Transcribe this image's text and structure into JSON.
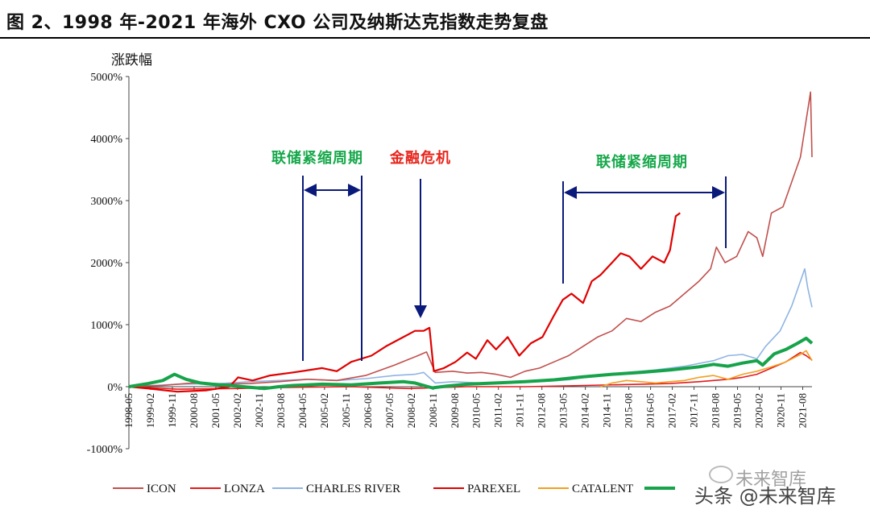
{
  "title": "图 2、1998 年-2021 年海外 CXO 公司及纳斯达克指数走势复盘",
  "watermark": {
    "text": "头条 @未来智库",
    "faded_text": "未来智库"
  },
  "annotations": {
    "tightening_1": "联储紧缩周期",
    "crisis": "金融危机",
    "tightening_2": "联储紧缩周期"
  },
  "colors": {
    "ICON": "#c0504d",
    "LONZA": "#e41a1c",
    "CHARLES RIVER": "#8fb4e3",
    "PAREXEL": "#e00000",
    "CATALENT": "#f0a020",
    "NASDAQ": "#16a34a",
    "arrow": "#0a1a7a",
    "annotation_green": "#17a84b",
    "annotation_red": "#e8251c"
  },
  "chart_data": {
    "type": "line",
    "title": "1998 年-2021 年海外 CXO 公司及纳斯达克指数走势复盘",
    "ylabel": "涨跌幅",
    "xlabel": "",
    "ylim": [
      -1000,
      5000
    ],
    "xlim": [
      1998.33,
      2021.9
    ],
    "y_ticks": [
      "5000%",
      "4000%",
      "3000%",
      "2000%",
      "1000%",
      "0%",
      "-1000%"
    ],
    "y_tick_values": [
      5000,
      4000,
      3000,
      2000,
      1000,
      0,
      -1000
    ],
    "x_ticks": [
      "1998-05",
      "1999-02",
      "1999-11",
      "2000-08",
      "2001-05",
      "2002-02",
      "2002-11",
      "2003-08",
      "2004-05",
      "2005-02",
      "2005-11",
      "2006-08",
      "2007-05",
      "2008-02",
      "2008-11",
      "2009-08",
      "2010-05",
      "2011-02",
      "2011-11",
      "2012-08",
      "2013-05",
      "2014-02",
      "2014-11",
      "2015-08",
      "2016-05",
      "2017-02",
      "2017-11",
      "2018-08",
      "2019-05",
      "2020-02",
      "2020-11",
      "2021-08"
    ],
    "x_tick_values": [
      1998.33,
      1999.08,
      1999.83,
      2000.58,
      2001.33,
      2002.08,
      2002.83,
      2003.58,
      2004.33,
      2005.08,
      2005.83,
      2006.58,
      2007.33,
      2008.08,
      2008.83,
      2009.58,
      2010.33,
      2011.08,
      2011.83,
      2012.58,
      2013.33,
      2014.08,
      2014.83,
      2015.58,
      2016.33,
      2017.08,
      2017.83,
      2018.58,
      2019.33,
      2020.08,
      2020.83,
      2021.58
    ],
    "legend": [
      "ICON",
      "LONZA",
      "CHARLES RIVER",
      "PAREXEL",
      "CATALENT",
      ""
    ],
    "legend_placement": "bottom",
    "series": [
      {
        "name": "ICON",
        "x": [
          1998.33,
          1999.5,
          2000.5,
          2001.5,
          2002.5,
          2003.5,
          2004.5,
          2005.5,
          2006.5,
          2007.5,
          2008.3,
          2008.6,
          2008.9,
          2009.5,
          2010.0,
          2010.5,
          2011.0,
          2011.5,
          2012.0,
          2012.5,
          2013.0,
          2013.5,
          2014.0,
          2014.5,
          2015.0,
          2015.5,
          2016.0,
          2016.5,
          2017.0,
          2017.5,
          2018.0,
          2018.4,
          2018.6,
          2018.9,
          2019.3,
          2019.7,
          2020.0,
          2020.2,
          2020.5,
          2020.9,
          2021.2,
          2021.5,
          2021.7,
          2021.85,
          2021.9
        ],
        "y": [
          0,
          20,
          60,
          40,
          50,
          80,
          120,
          100,
          180,
          350,
          500,
          560,
          230,
          250,
          220,
          230,
          200,
          150,
          250,
          300,
          400,
          500,
          650,
          800,
          900,
          1100,
          1050,
          1200,
          1300,
          1500,
          1700,
          1900,
          2250,
          2000,
          2100,
          2500,
          2400,
          2100,
          2800,
          2900,
          3300,
          3700,
          4300,
          4750,
          3700
        ]
      },
      {
        "name": "LONZA",
        "x": [
          1998.33,
          2000.0,
          2002.0,
          2004.0,
          2006.0,
          2008.0,
          2010.0,
          2012.0,
          2014.0,
          2016.0,
          2017.0,
          2018.0,
          2019.0,
          2019.5,
          2020.0,
          2020.5,
          2021.0,
          2021.5,
          2021.7,
          2021.9
        ],
        "y": [
          0,
          -40,
          -30,
          -10,
          0,
          -30,
          0,
          0,
          20,
          40,
          50,
          80,
          120,
          150,
          200,
          300,
          400,
          550,
          500,
          430
        ]
      },
      {
        "name": "CHARLES RIVER",
        "x": [
          1998.33,
          2000.0,
          2001.5,
          2002.5,
          2003.5,
          2004.5,
          2005.5,
          2006.5,
          2007.5,
          2008.2,
          2008.5,
          2008.9,
          2009.5,
          2010.5,
          2011.5,
          2012.5,
          2013.5,
          2014.5,
          2015.5,
          2016.5,
          2017.5,
          2018.5,
          2019.0,
          2019.5,
          2020.0,
          2020.3,
          2020.8,
          2021.2,
          2021.5,
          2021.65,
          2021.75,
          2021.9
        ],
        "y": [
          0,
          40,
          50,
          80,
          100,
          120,
          100,
          130,
          180,
          200,
          230,
          60,
          80,
          60,
          70,
          80,
          110,
          180,
          230,
          270,
          330,
          420,
          500,
          520,
          450,
          650,
          900,
          1300,
          1700,
          1900,
          1600,
          1280
        ]
      },
      {
        "name": "PAREXEL",
        "x": [
          1998.33,
          1999.0,
          2000.0,
          2001.0,
          2001.8,
          2002.1,
          2002.6,
          2003.2,
          2004.0,
          2005.0,
          2005.5,
          2006.0,
          2006.7,
          2007.2,
          2007.8,
          2008.2,
          2008.5,
          2008.7,
          2008.85,
          2009.2,
          2009.6,
          2010.0,
          2010.3,
          2010.7,
          2011.0,
          2011.4,
          2011.8,
          2012.2,
          2012.6,
          2013.0,
          2013.3,
          2013.6,
          2014.0,
          2014.3,
          2014.6,
          2015.0,
          2015.3,
          2015.6,
          2016.0,
          2016.4,
          2016.8,
          2017.0,
          2017.2,
          2017.35
        ],
        "y": [
          0,
          -30,
          -80,
          -60,
          0,
          150,
          100,
          180,
          230,
          300,
          250,
          400,
          500,
          650,
          800,
          900,
          900,
          950,
          250,
          300,
          400,
          550,
          450,
          750,
          600,
          800,
          500,
          700,
          800,
          1150,
          1400,
          1500,
          1350,
          1700,
          1800,
          2000,
          2150,
          2100,
          1900,
          2100,
          2000,
          2200,
          2750,
          2800
        ]
      },
      {
        "name": "CATALENT",
        "x": [
          2014.6,
          2015.0,
          2015.5,
          2016.0,
          2016.5,
          2017.0,
          2017.5,
          2018.0,
          2018.5,
          2019.0,
          2019.5,
          2020.0,
          2020.5,
          2021.0,
          2021.5,
          2021.7,
          2021.9
        ],
        "y": [
          0,
          60,
          100,
          80,
          60,
          80,
          100,
          150,
          180,
          120,
          200,
          250,
          320,
          400,
          520,
          580,
          420
        ]
      },
      {
        "name": "",
        "x": [
          1998.33,
          1999.0,
          1999.5,
          1999.9,
          2000.3,
          2000.8,
          2001.2,
          2001.8,
          2002.5,
          2003.0,
          2003.5,
          2004.0,
          2005.0,
          2006.0,
          2007.0,
          2007.8,
          2008.2,
          2008.8,
          2009.3,
          2010.0,
          2011.0,
          2012.0,
          2013.0,
          2014.0,
          2015.0,
          2016.0,
          2017.0,
          2018.0,
          2018.5,
          2019.0,
          2019.5,
          2020.0,
          2020.2,
          2020.6,
          2021.0,
          2021.4,
          2021.7,
          2021.9
        ],
        "y": [
          0,
          50,
          100,
          200,
          120,
          60,
          40,
          20,
          -10,
          -30,
          0,
          20,
          40,
          30,
          60,
          80,
          60,
          -20,
          10,
          40,
          60,
          80,
          110,
          160,
          200,
          230,
          270,
          320,
          360,
          330,
          380,
          420,
          350,
          530,
          600,
          700,
          780,
          700
        ]
      }
    ]
  }
}
